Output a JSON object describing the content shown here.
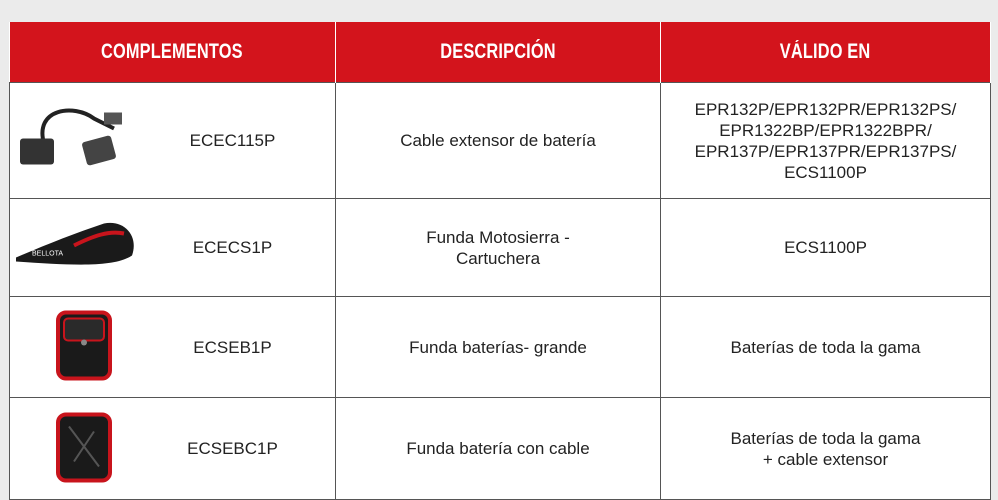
{
  "table": {
    "header": [
      "COMPLEMENTOS",
      "DESCRIPCIÓN",
      "VÁLIDO EN"
    ],
    "rows": [
      {
        "code": "ECEC115P",
        "description": [
          "Cable extensor de batería"
        ],
        "valid": [
          "EPR132P/EPR132PR/EPR132PS/",
          "EPR1322BP/EPR1322BPR/",
          "EPR137P/EPR137PR/EPR137PS/",
          "ECS1100P"
        ]
      },
      {
        "code": "ECECS1P",
        "description": [
          "Funda Motosierra -",
          "Cartuchera"
        ],
        "valid": [
          "ECS1100P"
        ]
      },
      {
        "code": "ECSEB1P",
        "description": [
          "Funda baterías- grande"
        ],
        "valid": [
          "Baterías de toda la gama"
        ]
      },
      {
        "code": "ECSEBC1P",
        "description": [
          "Funda batería con cable"
        ],
        "valid": [
          "Baterías de toda la gama",
          "+ cable extensor"
        ]
      }
    ]
  }
}
